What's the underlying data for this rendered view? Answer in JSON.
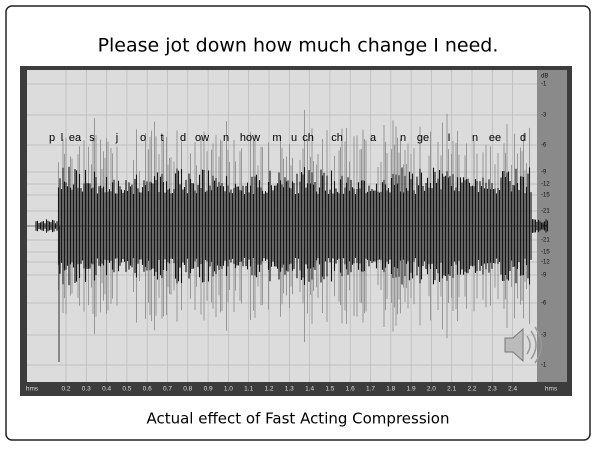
{
  "header": {
    "title": "Please jot down how much change I need."
  },
  "waveform": {
    "phonemes": [
      "p",
      "l",
      "ea",
      "s",
      "j",
      "o",
      "t",
      "d",
      "ow",
      "n",
      "how",
      "m",
      "u",
      "ch",
      "ch",
      "a",
      "n",
      "ge",
      "I",
      "n",
      "ee",
      "d"
    ],
    "db_labels": [
      "dB",
      "-1",
      "-3",
      "-6",
      "-9",
      "-12",
      "-15",
      "-21",
      "-∞",
      "-21",
      "-15",
      "-12",
      "-9",
      "-6",
      "-3",
      "-1"
    ],
    "time_labels": [
      "hms",
      "0.2",
      "0.3",
      "0.4",
      "0.5",
      "0.6",
      "0.7",
      "0.8",
      "0.9",
      "1.0",
      "1.1",
      "1.2",
      "1.3",
      "1.4",
      "1.5",
      "1.6",
      "1.7",
      "1.8",
      "1.9",
      "2.0",
      "2.1",
      "2.2",
      "2.3",
      "2.4",
      "hms"
    ]
  },
  "caption": "Actual effect of Fast Acting Compression"
}
